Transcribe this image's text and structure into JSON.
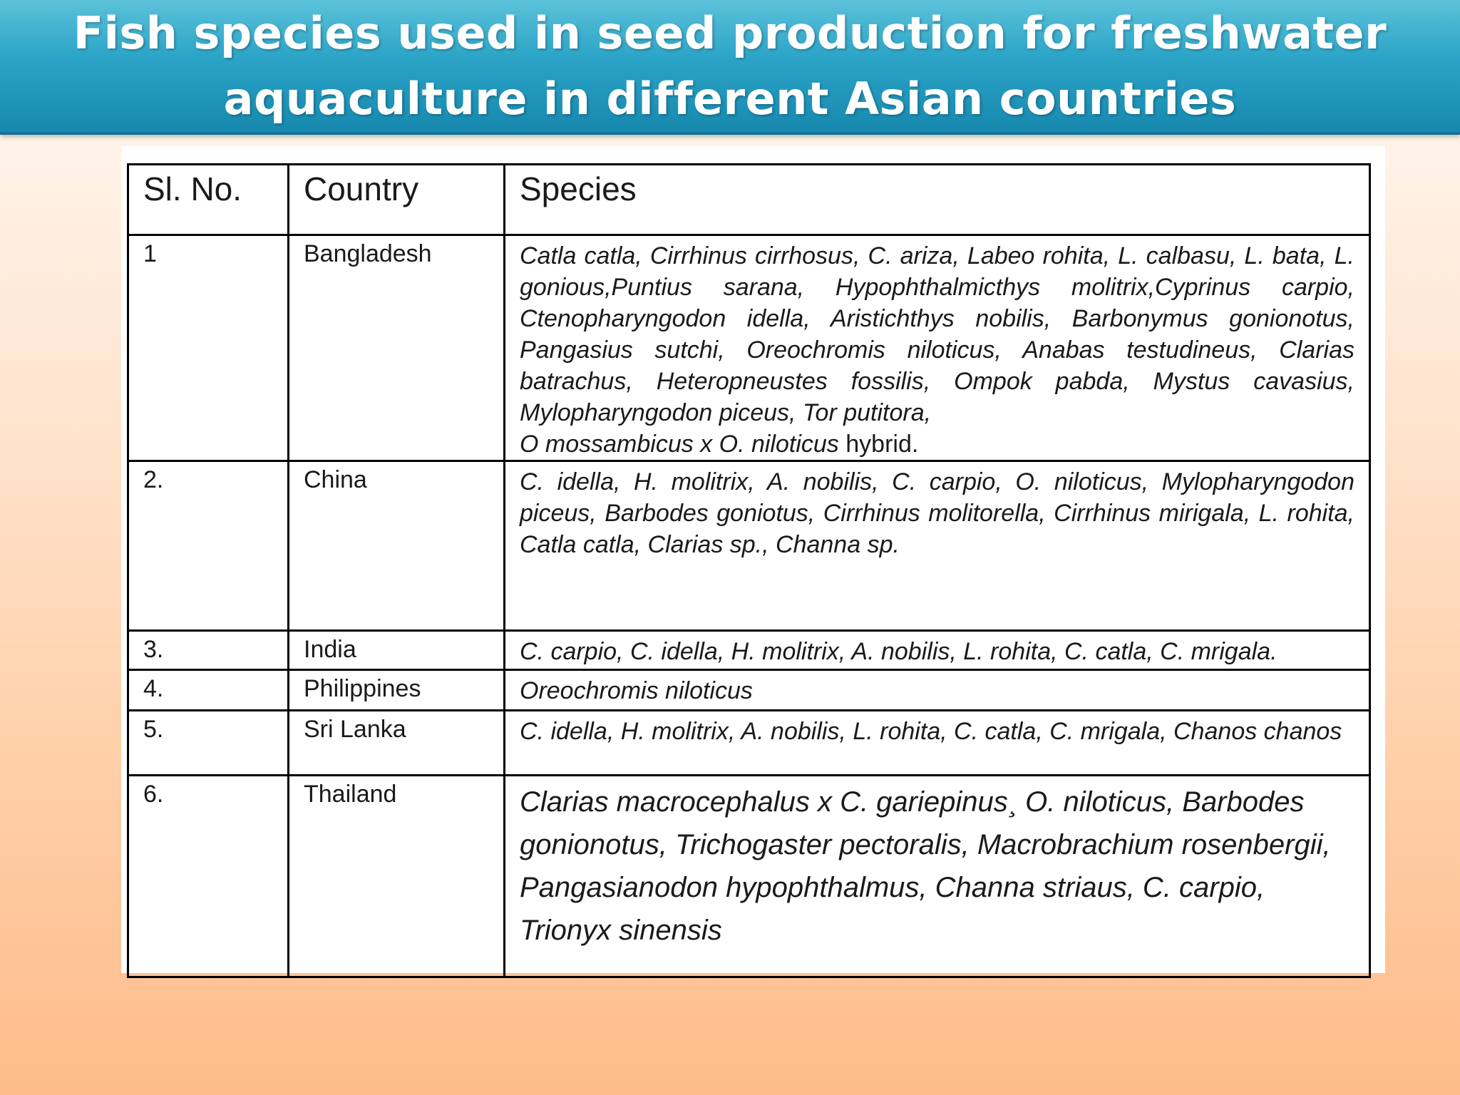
{
  "title": "Fish species used in seed production for freshwater aquaculture in different Asian countries",
  "table": {
    "headers": [
      "Sl. No.",
      "Country",
      "Species"
    ],
    "rows": [
      {
        "sl": "1",
        "country": "Bangladesh",
        "species": "Catla catla, Cirrhinus cirrhosus, C. ariza, Labeo rohita, L. calbasu, L. bata, L. gonious,Puntius sarana, Hypophthalmicthys molitrix,Cyprinus carpio, Ctenopharyngodon idella, Aristichthys nobilis, Barbonymus gonionotus, Pangasius sutchi, Oreochromis niloticus, Anabas testudineus, Clarias batrachus, Heteropneustes fossilis, Ompok pabda, Mystus cavasius, Mylopharyngodon piceus, Tor putitora,",
        "species_line2": "O mossambicus x O. niloticus",
        "species_suffix": "hybrid."
      },
      {
        "sl": "2.",
        "country": "China",
        "species": "C. idella, H. molitrix, A. nobilis, C. carpio, O. niloticus, Mylopharyngodon piceus, Barbodes goniotus, Cirrhinus molitorella, Cirrhinus mirigala, L. rohita, Catla catla, Clarias sp., Channa sp."
      },
      {
        "sl": "3.",
        "country": "India",
        "species": "C. carpio, C. idella, H. molitrix, A. nobilis, L. rohita, C. catla, C. mrigala."
      },
      {
        "sl": "4.",
        "country": "Philippines",
        "species": "Oreochromis niloticus"
      },
      {
        "sl": "5.",
        "country": "Sri Lanka",
        "species": "C. idella, H. molitrix, A. nobilis, L. rohita, C. catla, C. mrigala, Chanos chanos"
      },
      {
        "sl": "6.",
        "country": "Thailand",
        "species": "Clarias macrocephalus x C. gariepinus¸ O. niloticus, Barbodes gonionotus, Trichogaster pectoralis, Macrobrachium rosenbergii, Pangasianodon hypophthalmus, Channa striaus, C. carpio, Trionyx sinensis"
      }
    ]
  }
}
